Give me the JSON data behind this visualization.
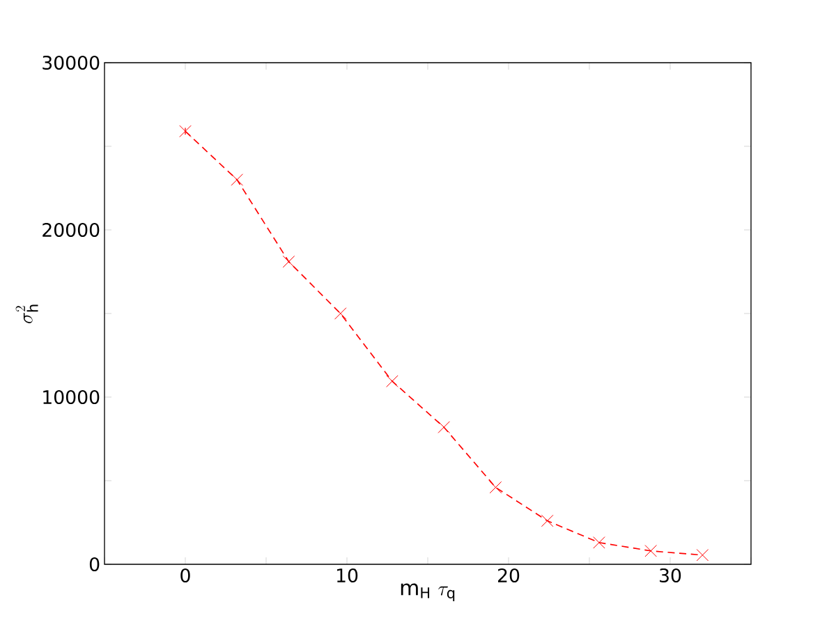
{
  "chart_data": {
    "type": "line",
    "xlabel": "\\mathrm{m_H}\\ \\tau_\\mathrm{q}",
    "ylabel": "\\sigma_\\mathrm{h}^2",
    "x": [
      0,
      3.2,
      6.4,
      9.6,
      12.8,
      16,
      19.2,
      22.4,
      25.6,
      28.8,
      32
    ],
    "series": [
      {
        "color": "#ff0000",
        "values": [
          25900,
          23000,
          18100,
          15000,
          10950,
          8200,
          4600,
          2600,
          1300,
          800,
          550
        ],
        "errors": [
          200,
          null,
          null,
          null,
          null,
          null,
          null,
          null,
          null,
          null,
          null
        ]
      }
    ],
    "marker": "cross",
    "line_style": "dashed",
    "grid": false,
    "xlim": [
      -5,
      35
    ],
    "xticks": [
      {
        "value": -5,
        "label": null
      },
      0,
      {
        "value": 5,
        "label": null
      },
      10,
      {
        "value": 15,
        "label": null
      },
      20,
      {
        "value": 25,
        "label": null
      },
      30,
      {
        "value": 35,
        "label": null
      }
    ],
    "ylim": [
      0,
      30000
    ],
    "yticks": [
      0,
      {
        "value": 5000,
        "label": null
      },
      10000,
      {
        "value": 15000,
        "label": null
      },
      20000,
      {
        "value": 25000,
        "label": null
      },
      30000
    ]
  }
}
